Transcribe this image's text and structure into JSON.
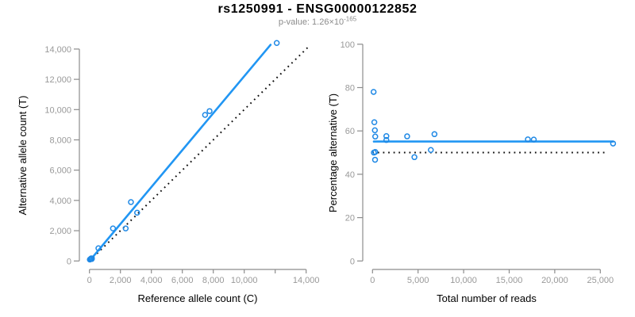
{
  "header": {
    "title": "rs1250991 - ENSG00000122852",
    "pvalue_label": "p-value: 1.26×10",
    "pvalue_exponent": "-165"
  },
  "colors": {
    "line_blue": "#2196F3",
    "point_blue": "#1E88E5",
    "reference_black": "#111111",
    "axis_gray": "#8c8c8c",
    "tick_label_gray": "#999999",
    "axis_title_black": "#000000",
    "subtitle_gray": "#8b8b8b"
  },
  "chart_data": [
    {
      "type": "scatter",
      "name": "allele-counts",
      "xlabel": "Reference allele count (C)",
      "ylabel": "Alternative allele count (T)",
      "xlim": [
        0,
        14000
      ],
      "ylim": [
        0,
        14000
      ],
      "grid": false,
      "x_ticks": {
        "values": [
          0,
          2000,
          4000,
          6000,
          8000,
          10000,
          12000,
          14000
        ],
        "labels": [
          "0",
          "2,000",
          "4,000",
          "6,000",
          "8,000",
          "10,000",
          "",
          "14,000"
        ]
      },
      "y_ticks": {
        "values": [
          0,
          2000,
          4000,
          6000,
          8000,
          10000,
          12000,
          14000
        ],
        "labels": [
          "0",
          "2,000",
          "4,000",
          "6,000",
          "8,000",
          "10,000",
          "12,000",
          "14,000"
        ]
      },
      "points": [
        [
          26,
          94
        ],
        [
          72,
          128
        ],
        [
          101,
          159
        ],
        [
          126,
          174
        ],
        [
          158,
          162
        ],
        [
          149,
          131
        ],
        [
          580,
          840
        ],
        [
          1520,
          2150
        ],
        [
          2340,
          2150
        ],
        [
          2680,
          3890
        ],
        [
          3080,
          3190
        ],
        [
          7470,
          9650
        ],
        [
          7760,
          9900
        ],
        [
          12100,
          14400
        ]
      ],
      "regression_line": {
        "x": [
          0,
          11700
        ],
        "y": [
          0,
          14280
        ]
      },
      "reference_line": {
        "x": [
          0,
          14200
        ],
        "y": [
          0,
          14200
        ]
      }
    },
    {
      "type": "scatter",
      "name": "percentage-alternative",
      "xlabel": "Total number of reads",
      "ylabel": "Percentage alternative (T)",
      "xlim": [
        0,
        25000
      ],
      "ylim": [
        0,
        100
      ],
      "grid": false,
      "x_ticks": {
        "values": [
          0,
          5000,
          10000,
          15000,
          20000,
          25000
        ],
        "labels": [
          "0",
          "5,000",
          "10,000",
          "15,000",
          "20,000",
          "25,000"
        ]
      },
      "y_ticks": {
        "values": [
          0,
          20,
          40,
          60,
          80,
          100
        ],
        "labels": [
          "0",
          "20",
          "40",
          "60",
          "80",
          "100"
        ]
      },
      "points": [
        [
          120,
          78
        ],
        [
          200,
          64
        ],
        [
          260,
          60.3
        ],
        [
          300,
          57.4
        ],
        [
          1520,
          57.6
        ],
        [
          1520,
          55.8
        ],
        [
          3800,
          57.5
        ],
        [
          6800,
          58.5
        ],
        [
          150,
          50.0
        ],
        [
          300,
          50.3
        ],
        [
          6400,
          51.2
        ],
        [
          4600,
          47.9
        ],
        [
          280,
          46.7
        ],
        [
          17050,
          56.1
        ],
        [
          17700,
          56.0
        ],
        [
          26400,
          54.2
        ]
      ],
      "regression_line": {
        "x": [
          150,
          26400
        ],
        "y": [
          55.1,
          55.1
        ]
      },
      "reference_line": {
        "x": [
          0,
          25800
        ],
        "y": [
          50,
          50
        ]
      }
    }
  ]
}
